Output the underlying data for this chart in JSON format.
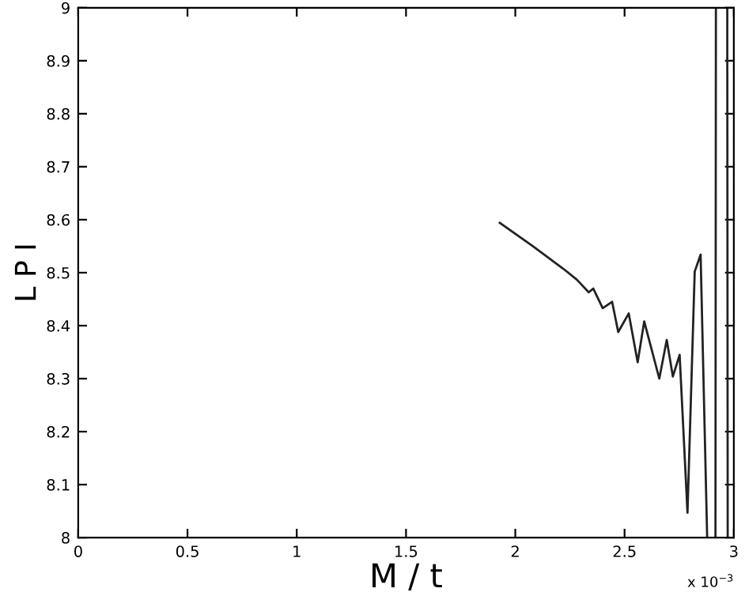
{
  "chart_data": {
    "type": "line",
    "xlabel": "M / t",
    "ylabel": "L P I",
    "annotations": [
      "x 10$^{−3}$"
    ],
    "series": [
      {
        "color": "#222222",
        "x": [
          1.929,
          2.08,
          2.221,
          2.281,
          2.336,
          2.357,
          2.4,
          2.443,
          2.471,
          2.519,
          2.56,
          2.59,
          2.659,
          2.693,
          2.721,
          2.752,
          2.788,
          2.821,
          2.848,
          2.878,
          2.897,
          2.916,
          2.918,
          2.944,
          2.97,
          2.972
        ],
        "values": [
          8.594,
          8.55,
          8.507,
          8.487,
          8.463,
          8.47,
          8.433,
          8.445,
          8.388,
          8.423,
          8.331,
          8.408,
          8.3,
          8.373,
          8.304,
          8.345,
          8.047,
          8.502,
          8.534,
          8.0,
          null,
          8.0,
          9.0,
          null,
          9.0,
          8.0
        ]
      }
    ],
    "xlim": [
      0,
      3
    ],
    "ylim": [
      8,
      9
    ],
    "xticks": [
      0,
      0.5,
      1,
      1.5,
      2,
      2.5,
      3
    ],
    "yticks": [
      8,
      8.1,
      8.2,
      8.3,
      8.4,
      8.5,
      8.6,
      8.7,
      8.8,
      8.9,
      9
    ],
    "grid": false,
    "legend": false
  }
}
